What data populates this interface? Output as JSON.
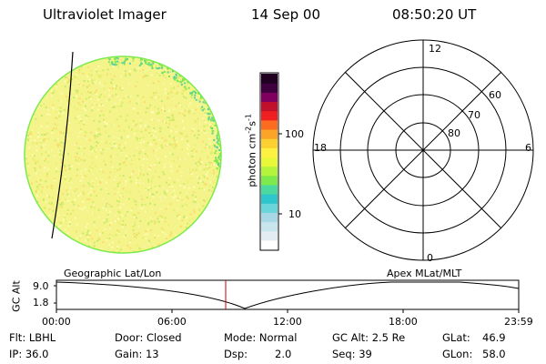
{
  "header": {
    "instrument": "Ultraviolet Imager",
    "date": "14 Sep 00",
    "time": "08:50:20 UT"
  },
  "colorbar": {
    "label": "photon cm",
    "unit_exp_cm": "-2",
    "unit_s": "s",
    "unit_exp_s": "-1",
    "tick_100": "100",
    "tick_10": "10",
    "colors": [
      "#ffffff",
      "#e2ecf2",
      "#c8e4ec",
      "#a8d8e6",
      "#6ad6dc",
      "#2cc6cc",
      "#4cd9a0",
      "#7cea4c",
      "#b4f43c",
      "#e8f838",
      "#fcf040",
      "#fcd030",
      "#fca428",
      "#fc6c20",
      "#f02020",
      "#c0102c",
      "#800060",
      "#400040",
      "#200020"
    ]
  },
  "polar": {
    "label_top": "12",
    "label_bottom": "0",
    "label_left": "18",
    "label_right": "6",
    "label_60": "60",
    "label_70": "70",
    "label_80": "80"
  },
  "track": {
    "axis_title": "GC Alt",
    "y_max": "9.0",
    "y_min": "1.8",
    "left_label": "Geographic Lat/Lon",
    "right_label": "Apex MLat/MLT",
    "x_ticks": [
      "00:00",
      "06:00",
      "12:00",
      "18:00",
      "23:59"
    ]
  },
  "status": {
    "row1": {
      "flt": "Flt: LBHL",
      "door": "Door: Closed",
      "mode": "Mode: Normal",
      "gcalt": "GC Alt: 2.5 Re",
      "glat_label": "GLat:",
      "glat_value": "46.9"
    },
    "row2": {
      "ip": "IP: 36.0",
      "gain": "Gain: 13",
      "dsp_label": "Dsp:",
      "dsp_value": "2.0",
      "seq": "Seq: 39",
      "glon_label": "GLon:",
      "glon_value": "58.0"
    }
  },
  "image_colors": {
    "base": "#f4f48a",
    "speckle": [
      "#fffcb4",
      "#e6f070",
      "#d4ec60",
      "#fcdc6c",
      "#c6ea6e",
      "#f8f8a8"
    ],
    "edge": "#7cea4c"
  }
}
